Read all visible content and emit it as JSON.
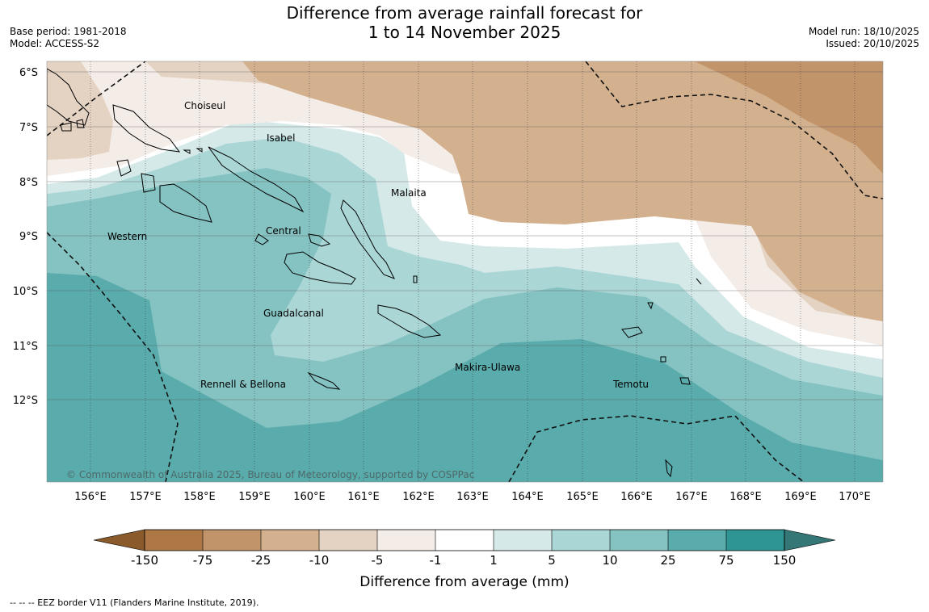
{
  "title": {
    "line1": "Difference from average rainfall forecast for",
    "line2": "1 to 14 November 2025"
  },
  "meta": {
    "base_period": "Base period: 1981-2018",
    "model": "Model: ACCESS-S2",
    "model_run": "Model run: 18/10/2025",
    "issued": "Issued: 20/10/2025"
  },
  "copyright": "© Commonwealth of Australia 2025, Bureau of Meteorology, supported by COSPPac",
  "lat_labels": [
    "6°S",
    "7°S",
    "8°S",
    "9°S",
    "10°S",
    "11°S",
    "12°S"
  ],
  "lon_labels": [
    "156°E",
    "157°E",
    "158°E",
    "159°E",
    "160°E",
    "161°E",
    "162°E",
    "163°E",
    "164°E",
    "165°E",
    "166°E",
    "167°E",
    "168°E",
    "169°E",
    "170°E"
  ],
  "provinces": {
    "choiseul": "Choiseul",
    "isabel": "Isabel",
    "malaita": "Malaita",
    "western": "Western",
    "central": "Central",
    "guadalcanal": "Guadalcanal",
    "makira": "Makira-Ulawa",
    "temotu": "Temotu",
    "rennell": "Rennell & Bellona"
  },
  "legend": {
    "label": "Difference from average (mm)",
    "ticks": [
      "-150",
      "-75",
      "-25",
      "-10",
      "-5",
      "-1",
      "1",
      "5",
      "10",
      "25",
      "75",
      "150"
    ],
    "colors": {
      "below_min": "#8b5a2b",
      "m150": "#ad7845",
      "m75": "#c2946a",
      "m25": "#d3b08e",
      "m10": "#e4d2c2",
      "m5": "#f4ece7",
      "m1": "#ffffff",
      "p1": "#d6e9e9",
      "p5": "#abd6d6",
      "p10": "#85c2c2",
      "p25": "#5aabab",
      "p75": "#2e9494",
      "above_max": "#357777"
    }
  },
  "footnote": "--  --  -- EEZ border V11 (Flanders Marine Institute, 2019)."
}
